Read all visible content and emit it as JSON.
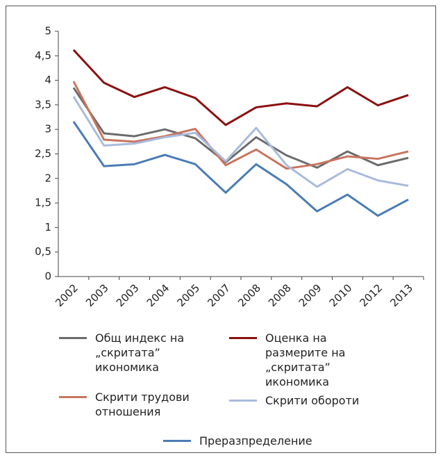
{
  "chart_data": {
    "type": "line",
    "categories": [
      "2002",
      "2003",
      "2003",
      "2004",
      "2005",
      "2007",
      "2008",
      "2008",
      "2009",
      "2010",
      "2012",
      "2013"
    ],
    "series": [
      {
        "name": "Общ индекс на „скритата” икономика",
        "color": "#6b6b6b",
        "values": [
          3.85,
          2.92,
          2.86,
          3.0,
          2.82,
          2.33,
          2.84,
          2.47,
          2.22,
          2.55,
          2.27,
          2.42
        ]
      },
      {
        "name": "Оценка на размерите на „скритата” икономика",
        "color": "#8b1010",
        "values": [
          4.62,
          3.95,
          3.66,
          3.86,
          3.64,
          3.09,
          3.45,
          3.53,
          3.47,
          3.86,
          3.49,
          3.7
        ]
      },
      {
        "name": "Скрити трудови отношения",
        "color": "#c8745f",
        "values": [
          3.98,
          2.79,
          2.75,
          2.86,
          3.01,
          2.27,
          2.59,
          2.2,
          2.29,
          2.45,
          2.4,
          2.55
        ]
      },
      {
        "name": "Скрити обороти",
        "color": "#a9bbdc",
        "values": [
          3.67,
          2.67,
          2.71,
          2.84,
          2.93,
          2.35,
          3.03,
          2.27,
          1.83,
          2.19,
          1.96,
          1.85
        ]
      },
      {
        "name": "Преразпределение",
        "color": "#4a7cb4",
        "values": [
          3.16,
          2.25,
          2.29,
          2.48,
          2.29,
          1.71,
          2.29,
          1.88,
          1.33,
          1.67,
          1.24,
          1.57
        ]
      }
    ],
    "ylim": [
      0,
      5
    ],
    "yticks": [
      0,
      {
        "value": 0.5,
        "label": "0,5"
      },
      1,
      {
        "value": 1.5,
        "label": "1,5"
      },
      2,
      {
        "value": 2.5,
        "label": "2,5"
      },
      3,
      {
        "value": 3.5,
        "label": "3,5"
      },
      4,
      {
        "value": 4.5,
        "label": "4,5"
      },
      5
    ]
  }
}
